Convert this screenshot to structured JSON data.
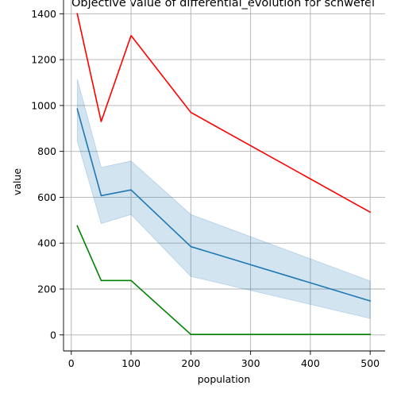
{
  "chart_data": {
    "type": "line",
    "title": "Objective value of differential_evolution for schwefel",
    "xlabel": "population",
    "ylabel": "value",
    "x": [
      10,
      50,
      100,
      200,
      500
    ],
    "xlim": [
      -13,
      525
    ],
    "ylim": [
      -70,
      1460
    ],
    "xticks": [
      0,
      100,
      200,
      300,
      400,
      500
    ],
    "yticks": [
      0,
      200,
      400,
      600,
      800,
      1000,
      1200,
      1400
    ],
    "grid": true,
    "series": [
      {
        "key": "max",
        "color": "#ff0000",
        "values": [
          1400,
          930,
          1305,
          970,
          535
        ]
      },
      {
        "key": "mean",
        "color": "#1f77b4",
        "values": [
          985,
          607,
          632,
          385,
          148
        ],
        "band_low": [
          845,
          485,
          525,
          255,
          72
        ],
        "band_high": [
          1115,
          730,
          758,
          525,
          235
        ],
        "band_color": "#1f77b4"
      },
      {
        "key": "min",
        "color": "#008000",
        "values": [
          475,
          237,
          237,
          2,
          2
        ]
      }
    ]
  }
}
